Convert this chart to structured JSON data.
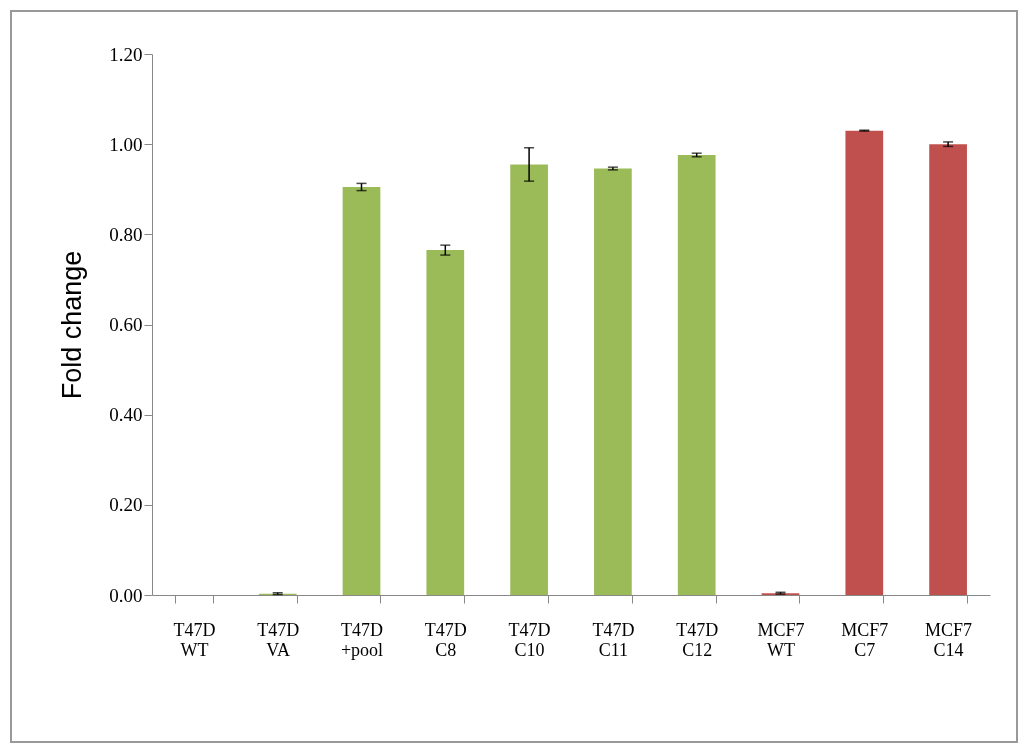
{
  "chart_data": {
    "type": "bar",
    "ylabel": "Fold change",
    "categories": [
      "T47D WT",
      "T47D VA",
      "T47D +pool",
      "T47D C8",
      "T47D C10",
      "T47D C11",
      "T47D C12",
      "MCF7 WT",
      "MCF7 C7",
      "MCF7 C14"
    ],
    "values": [
      0,
      0.003,
      0.905,
      0.765,
      0.955,
      0.946,
      0.976,
      0.004,
      1.03,
      1.0
    ],
    "errors": [
      null,
      0.002,
      0.008,
      0.011,
      0.037,
      0.003,
      0.004,
      0.002,
      0.001,
      0.005
    ],
    "colors": [
      "#9bbb59",
      "#9bbb59",
      "#9bbb59",
      "#9bbb59",
      "#9bbb59",
      "#9bbb59",
      "#9bbb59",
      "#c0504d",
      "#c0504d",
      "#c0504d"
    ],
    "ylim": [
      0,
      1.2
    ],
    "yticks": [
      {
        "value": 0,
        "label": "0.00"
      },
      {
        "value": 0.2,
        "label": "0.20"
      },
      {
        "value": 0.4,
        "label": "0.40"
      },
      {
        "value": 0.6,
        "label": "0.60"
      },
      {
        "value": 0.8,
        "label": "0.80"
      },
      {
        "value": 1,
        "label": "1.00"
      },
      {
        "value": 1.2,
        "label": "1.20"
      }
    ],
    "grid": false
  }
}
